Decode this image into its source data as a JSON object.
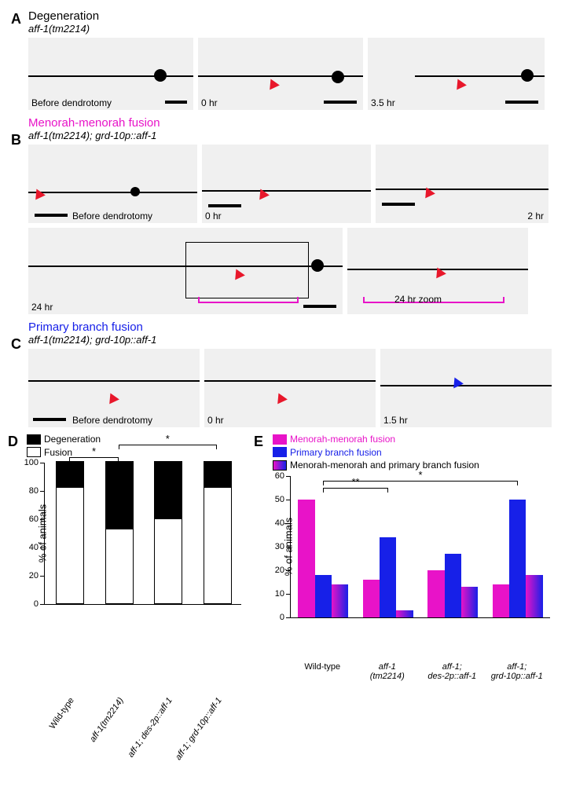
{
  "sections": {
    "degeneration": {
      "title": "Degeneration",
      "title_color": "#000000",
      "genotype": "aff-1(tm2214)"
    },
    "menorah": {
      "title": "Menorah-menorah fusion",
      "title_color": "#e813c8",
      "genotype": "aff-1(tm2214); grd-10p::aff-1"
    },
    "primary": {
      "title": "Primary branch fusion",
      "title_color": "#1720e8",
      "genotype": "aff-1(tm2214); grd-10p::aff-1"
    }
  },
  "panel_letters": {
    "A": "A",
    "B": "B",
    "C": "C",
    "D": "D",
    "E": "E"
  },
  "time_labels": {
    "before": "Before dendrotomy",
    "t0": "0 hr",
    "t3_5": "3.5 hr",
    "t2": "2 hr",
    "t24": "24 hr",
    "t24z": "24 hr zoom",
    "t1_5": "1.5 hr"
  },
  "chartD": {
    "type": "stacked-bar",
    "ylabel": "% of animals",
    "ymax": 100,
    "ytick_step": 20,
    "legend": [
      {
        "label": "Degeneration",
        "color": "#000000"
      },
      {
        "label": "Fusion",
        "color": "#ffffff"
      }
    ],
    "categories": [
      "Wild-type",
      "aff-1(tm2214)",
      "aff-1; des-2p::aff-1",
      "aff-1; grd-10p::aff-1"
    ],
    "fusion": [
      82,
      53,
      60,
      82
    ],
    "degeneration": [
      18,
      47,
      40,
      18
    ],
    "bar_color_bottom": "#ffffff",
    "bar_color_top": "#000000",
    "border_color": "#000000",
    "bar_width": 0.55,
    "sig": [
      {
        "from": 0,
        "to": 1,
        "label": "*",
        "y": 104
      },
      {
        "from": 1,
        "to": 3,
        "label": "*",
        "y": 113
      }
    ]
  },
  "chartE": {
    "type": "grouped-bar",
    "ylabel": "% of animals",
    "ymax": 60,
    "ytick_step": 10,
    "legend": [
      {
        "label": "Menorah-menorah fusion",
        "color": "#e813c8"
      },
      {
        "label": "Primary branch fusion",
        "color": "#1720e8"
      },
      {
        "label": "Menorah-menorah and primary branch fusion",
        "color": "gradient"
      }
    ],
    "categories": [
      "Wild-type",
      "aff-1\n(tm2214)",
      "aff-1;\ndes-2p::aff-1",
      "aff-1;\ngrd-10p::aff-1"
    ],
    "series": {
      "menorah": [
        50,
        16,
        20,
        14
      ],
      "primary": [
        18,
        34,
        27,
        50
      ],
      "both": [
        14,
        3,
        13,
        18
      ]
    },
    "colors": {
      "menorah": "#e813c8",
      "primary": "#1720e8",
      "both": "gradient"
    },
    "bar_width": 0.26,
    "sig": [
      {
        "from": 0,
        "to": 1,
        "label": "**",
        "y": 55
      },
      {
        "from": 0,
        "to": 3,
        "label": "*",
        "y": 58
      }
    ]
  },
  "micro_bg": "#ededed",
  "scalebar_color": "#000000"
}
